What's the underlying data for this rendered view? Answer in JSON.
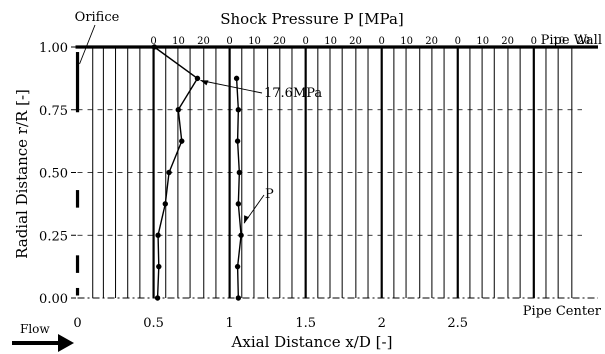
{
  "chart_data": {
    "type": "line",
    "title": "Shock Pressure  P [MPa]",
    "xlabel": "Axial Distance  x/D [-]",
    "ylabel": "Radial Distance  r/R [-]",
    "xlim": [
      -0.01,
      3.33
    ],
    "ylim": [
      0,
      1
    ],
    "x_ticks": [
      {
        "value": 0,
        "label": "0"
      },
      {
        "value": 0.5,
        "label": "0.5"
      },
      {
        "value": 1,
        "label": "1"
      },
      {
        "value": 1.5,
        "label": "1.5"
      },
      {
        "value": 2,
        "label": "2"
      },
      {
        "value": 2.5,
        "label": "2.5"
      }
    ],
    "y_ticks": [
      {
        "value": 0,
        "label": "0.00"
      },
      {
        "value": 0.25,
        "label": "0.25"
      },
      {
        "value": 0.5,
        "label": "0.50"
      },
      {
        "value": 0.75,
        "label": "0.75"
      },
      {
        "value": 1,
        "label": "1.00"
      }
    ],
    "pressure_scale": {
      "labels": [
        "0",
        "10",
        "20"
      ],
      "values": [
        0,
        10,
        20
      ],
      "x_per_MPa": 0.0164,
      "sections_x": [
        0.5,
        1.0,
        1.5,
        2.0,
        2.5,
        3.0
      ]
    },
    "thick_lines_x": [
      0.5,
      1.0,
      1.5,
      2.0,
      2.5,
      3.0
    ],
    "minor_lines_x": [
      0.1,
      0.17,
      0.25,
      0.33,
      0.41,
      0.58,
      0.66,
      0.74,
      0.83,
      0.91,
      1.08,
      1.16,
      1.25,
      1.33,
      1.41,
      1.58,
      1.66,
      1.74,
      1.83,
      1.91,
      2.08,
      2.16,
      2.25,
      2.33,
      2.41,
      2.58,
      2.66,
      2.74,
      2.83,
      2.91,
      3.08,
      3.16,
      3.25
    ],
    "grid_dashed_y": [
      0.25,
      0.5,
      0.75
    ],
    "series": [
      {
        "baseline_x": 0.5,
        "points": [
          {
            "r": 1.0,
            "p": 0.3
          },
          {
            "r": 0.875,
            "p": 17.6
          },
          {
            "r": 0.75,
            "p": 9.9
          },
          {
            "r": 0.625,
            "p": 11.3
          },
          {
            "r": 0.5,
            "p": 6.2
          },
          {
            "r": 0.375,
            "p": 4.7
          },
          {
            "r": 0.25,
            "p": 1.8
          },
          {
            "r": 0.125,
            "p": 2.1
          },
          {
            "r": 0.0,
            "p": 1.6
          }
        ]
      },
      {
        "baseline_x": 1.0,
        "points": [
          {
            "r": 0.875,
            "p": 2.8
          },
          {
            "r": 0.75,
            "p": 3.5
          },
          {
            "r": 0.625,
            "p": 3.2
          },
          {
            "r": 0.5,
            "p": 3.9
          },
          {
            "r": 0.375,
            "p": 3.5
          },
          {
            "r": 0.25,
            "p": 4.6
          },
          {
            "r": 0.125,
            "p": 3.2
          },
          {
            "r": 0.0,
            "p": 3.5
          }
        ]
      }
    ],
    "annotations": {
      "orifice": "Orifice",
      "pipe_wall": "Pipe Wall",
      "pipe_center": "Pipe Center",
      "flow": "Flow",
      "peak": "17.6MPa",
      "p": "P"
    },
    "orifice_segments_r": [
      [
        0.74,
        0.98
      ],
      [
        0.36,
        0.43
      ],
      [
        0.1,
        0.17
      ],
      [
        0.01,
        0.04
      ]
    ]
  }
}
